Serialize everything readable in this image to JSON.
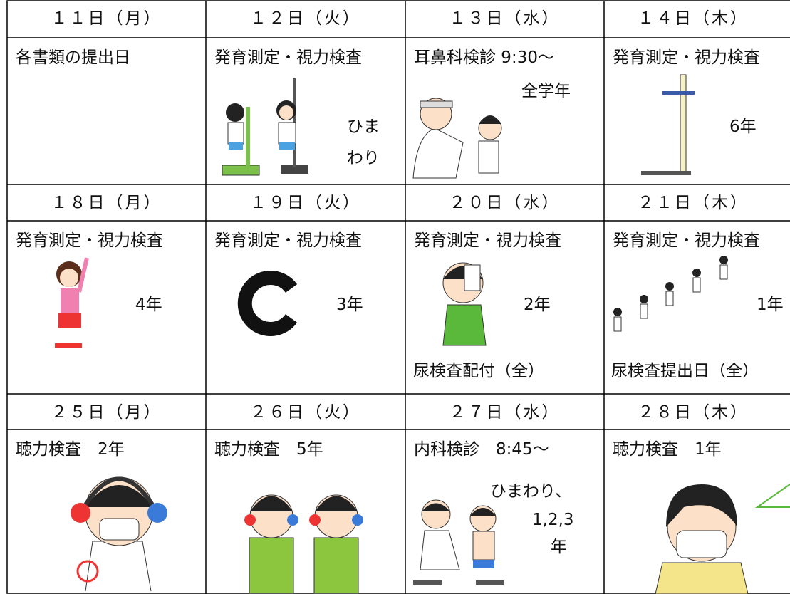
{
  "weeks": [
    {
      "days": [
        {
          "date": "１１日（月）",
          "items": [
            "各書類の提出日"
          ]
        },
        {
          "date": "１２日（火）",
          "items": [
            "発育測定・視力検査",
            "ひま",
            "わり"
          ]
        },
        {
          "date": "１３日（水）",
          "items": [
            "耳鼻科検診 9:30～",
            "全学年"
          ]
        },
        {
          "date": "１４日（木）",
          "items": [
            "発育測定・視力検査",
            "6年"
          ]
        }
      ]
    },
    {
      "days": [
        {
          "date": "１８日（月）",
          "items": [
            "発育測定・視力検査",
            "4年"
          ]
        },
        {
          "date": "１９日（火）",
          "items": [
            "発育測定・視力検査",
            "3年"
          ]
        },
        {
          "date": "２０日（水）",
          "items": [
            "発育測定・視力検査",
            "2年",
            "尿検査配付（全）"
          ]
        },
        {
          "date": "２１日（木）",
          "items": [
            "発育測定・視力検査",
            "1年",
            "尿検査提出日（全）"
          ]
        }
      ]
    },
    {
      "days": [
        {
          "date": "２５日（月）",
          "items": [
            "聴力検査　2年"
          ]
        },
        {
          "date": "２６日（火）",
          "items": [
            "聴力検査　5年"
          ]
        },
        {
          "date": "２７日（水）",
          "items": [
            "内科検診　8:45～",
            "ひまわり、",
            "1,2,3",
            "年"
          ]
        },
        {
          "date": "２８日（木）",
          "items": [
            "聴力検査　1年"
          ]
        }
      ]
    }
  ]
}
